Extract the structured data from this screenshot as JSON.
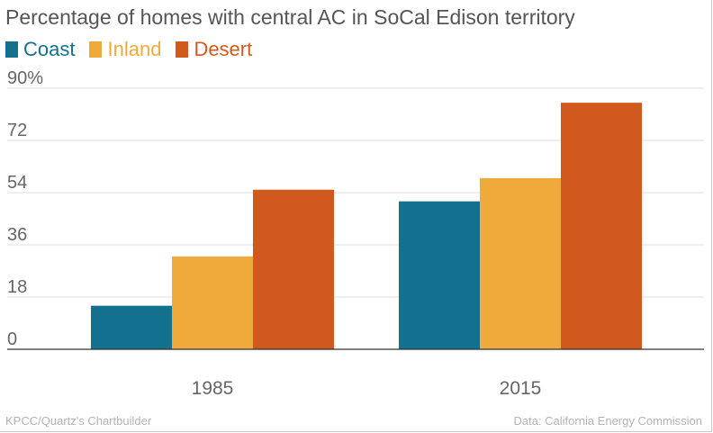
{
  "colors": {
    "Coast": "#14708f",
    "Inland": "#f0a93b",
    "Desert": "#d2591d"
  },
  "footer": {
    "credit": "KPCC/Quartz's Chartbuilder",
    "source": "Data: California Energy Commission"
  },
  "chart_data": {
    "type": "bar",
    "title": "Percentage of homes with central AC in SoCal Edison territory",
    "categories": [
      "1985",
      "2015"
    ],
    "series": [
      {
        "name": "Coast",
        "values": [
          15,
          51
        ]
      },
      {
        "name": "Inland",
        "values": [
          32,
          59
        ]
      },
      {
        "name": "Desert",
        "values": [
          55,
          85
        ]
      }
    ],
    "yticks": [
      "0",
      "18",
      "36",
      "54",
      "72",
      "90%"
    ],
    "ylim": [
      0,
      90
    ],
    "legend": "top-left",
    "grid": true
  }
}
